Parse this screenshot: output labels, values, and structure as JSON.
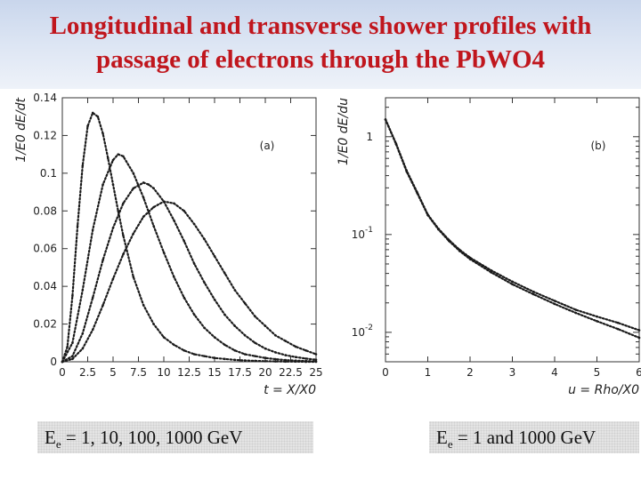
{
  "title": {
    "line1": "Longitudinal and transverse shower profiles with",
    "line2": "passage of electrons through the PbWO4"
  },
  "captions": {
    "left": {
      "prefix": "E",
      "sub": "e",
      "text": " = 1, 10, 100, 1000 GeV"
    },
    "right": {
      "prefix": "E",
      "sub": "e",
      "text": " = 1 and 1000 GeV"
    }
  },
  "colors": {
    "title": "#c0161d",
    "points": "#1a1a1a"
  },
  "chart_data": [
    {
      "type": "scatter",
      "panel_label": "(a)",
      "xlabel": "t = X/X0",
      "ylabel": "1/E0 dE/dt",
      "xlim": [
        0,
        25
      ],
      "ylim": [
        0,
        0.14
      ],
      "xticks": [
        "0",
        "2.5",
        "5",
        "7.5",
        "10",
        "12.5",
        "15",
        "17.5",
        "20",
        "22.5",
        "25"
      ],
      "yticks": [
        "0",
        "0.02",
        "0.04",
        "0.06",
        "0.08",
        "0.1",
        "0.12",
        "0.14"
      ],
      "series": [
        {
          "x": [
            0,
            0.5,
            1,
            1.5,
            2,
            2.5,
            3,
            3.5,
            4,
            4.5,
            5,
            5.5,
            6,
            7,
            8,
            9,
            10,
            11,
            12,
            13,
            14,
            15,
            16,
            17,
            18,
            19,
            20,
            21,
            22,
            23,
            24,
            25
          ],
          "y": [
            0,
            0.008,
            0.035,
            0.072,
            0.104,
            0.125,
            0.132,
            0.13,
            0.121,
            0.108,
            0.094,
            0.08,
            0.067,
            0.045,
            0.03,
            0.02,
            0.013,
            0.009,
            0.006,
            0.004,
            0.003,
            0.002,
            0.0015,
            0.001,
            0.0007,
            0.0005,
            0.0003,
            0.0002,
            0.0001,
            0.0001,
            0,
            0
          ]
        },
        {
          "x": [
            0,
            1,
            2,
            3,
            4,
            5,
            5.5,
            6,
            7,
            8,
            9,
            10,
            11,
            12,
            13,
            14,
            15,
            16,
            17,
            18,
            19,
            20,
            21,
            22,
            23,
            24,
            25
          ],
          "y": [
            0,
            0.01,
            0.038,
            0.07,
            0.094,
            0.107,
            0.11,
            0.109,
            0.1,
            0.087,
            0.072,
            0.058,
            0.045,
            0.034,
            0.025,
            0.018,
            0.013,
            0.009,
            0.006,
            0.004,
            0.003,
            0.002,
            0.0014,
            0.0009,
            0.0006,
            0.0004,
            0.0002
          ]
        },
        {
          "x": [
            0,
            1,
            2,
            3,
            4,
            5,
            6,
            7,
            8,
            8.5,
            9,
            10,
            11,
            12,
            13,
            14,
            15,
            16,
            17,
            18,
            19,
            20,
            21,
            22,
            23,
            24,
            25
          ],
          "y": [
            0,
            0.003,
            0.015,
            0.034,
            0.054,
            0.071,
            0.084,
            0.092,
            0.095,
            0.094,
            0.092,
            0.085,
            0.075,
            0.064,
            0.052,
            0.042,
            0.033,
            0.025,
            0.019,
            0.014,
            0.01,
            0.007,
            0.005,
            0.0035,
            0.0025,
            0.0017,
            0.0011
          ]
        },
        {
          "x": [
            0,
            1,
            2,
            3,
            4,
            5,
            6,
            7,
            8,
            9,
            10,
            11,
            12,
            13,
            14,
            15,
            16,
            17,
            18,
            19,
            20,
            21,
            22,
            23,
            24,
            25
          ],
          "y": [
            0,
            0.0015,
            0.007,
            0.017,
            0.03,
            0.044,
            0.057,
            0.068,
            0.077,
            0.082,
            0.085,
            0.084,
            0.08,
            0.073,
            0.065,
            0.056,
            0.047,
            0.038,
            0.031,
            0.024,
            0.019,
            0.014,
            0.011,
            0.008,
            0.006,
            0.004
          ]
        }
      ]
    },
    {
      "type": "scatter",
      "panel_label": "(b)",
      "xlabel": "u = Rho/X0",
      "ylabel": "1/E0 dE/du",
      "xlim": [
        0,
        6
      ],
      "ylim": [
        0.005,
        2.5
      ],
      "yscale": "log",
      "xticks": [
        "0",
        "1",
        "2",
        "3",
        "4",
        "5",
        "6"
      ],
      "yticks": [
        {
          "value": 1,
          "base": "1",
          "exp": ""
        },
        {
          "value": 0.1,
          "base": "10",
          "exp": "-1"
        },
        {
          "value": 0.01,
          "base": "10",
          "exp": "-2"
        }
      ],
      "series": [
        {
          "x": [
            0,
            0.25,
            0.5,
            0.75,
            1,
            1.25,
            1.5,
            1.75,
            2,
            2.5,
            3,
            3.5,
            4,
            4.5,
            5,
            5.5,
            6
          ],
          "y": [
            1.5,
            0.85,
            0.45,
            0.27,
            0.16,
            0.115,
            0.088,
            0.07,
            0.058,
            0.043,
            0.033,
            0.026,
            0.021,
            0.017,
            0.0145,
            0.0125,
            0.0105
          ]
        },
        {
          "x": [
            0,
            0.25,
            0.5,
            0.75,
            1,
            1.25,
            1.5,
            1.75,
            2,
            2.5,
            3,
            3.5,
            4,
            4.5,
            5,
            5.5,
            6
          ],
          "y": [
            1.5,
            0.84,
            0.44,
            0.265,
            0.158,
            0.113,
            0.086,
            0.068,
            0.056,
            0.041,
            0.031,
            0.0245,
            0.0195,
            0.0158,
            0.013,
            0.0108,
            0.0088
          ]
        }
      ]
    }
  ]
}
